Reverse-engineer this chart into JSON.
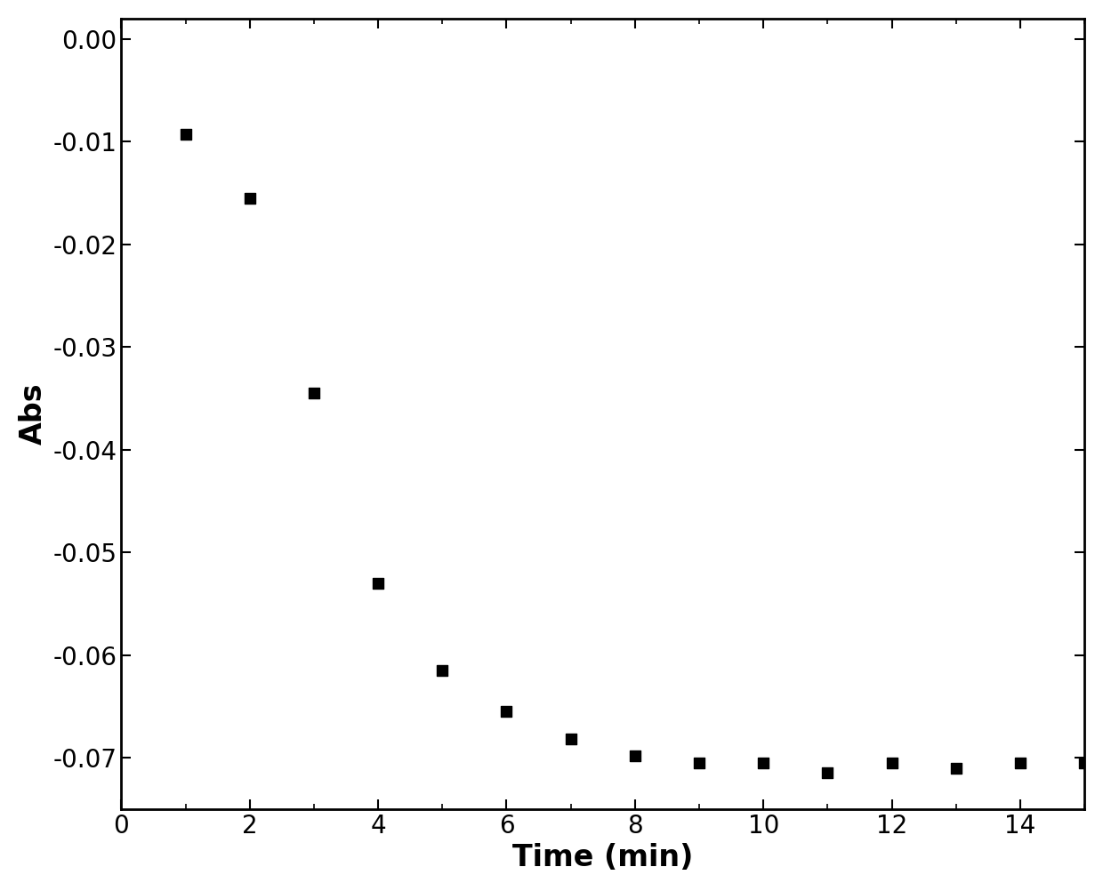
{
  "x": [
    1,
    2,
    3,
    4,
    5,
    6,
    7,
    8,
    9,
    10,
    11,
    12,
    13,
    14,
    15
  ],
  "y": [
    -0.0093,
    -0.0155,
    -0.0345,
    -0.053,
    -0.0615,
    -0.0655,
    -0.0682,
    -0.0698,
    -0.0705,
    -0.0705,
    -0.0715,
    -0.0705,
    -0.071,
    -0.0705,
    -0.0705
  ],
  "xlabel": "Time (min)",
  "ylabel": "Abs",
  "xlim": [
    0,
    15
  ],
  "ylim": [
    -0.075,
    0.002
  ],
  "xticks": [
    0,
    2,
    4,
    6,
    8,
    10,
    12,
    14
  ],
  "yticks": [
    0.0,
    -0.01,
    -0.02,
    -0.03,
    -0.04,
    -0.05,
    -0.06,
    -0.07
  ],
  "marker_color": "#000000",
  "marker": "s",
  "marker_size": 9,
  "background_color": "#ffffff",
  "xlabel_fontsize": 24,
  "ylabel_fontsize": 24,
  "tick_fontsize": 20,
  "spine_linewidth": 2.0
}
